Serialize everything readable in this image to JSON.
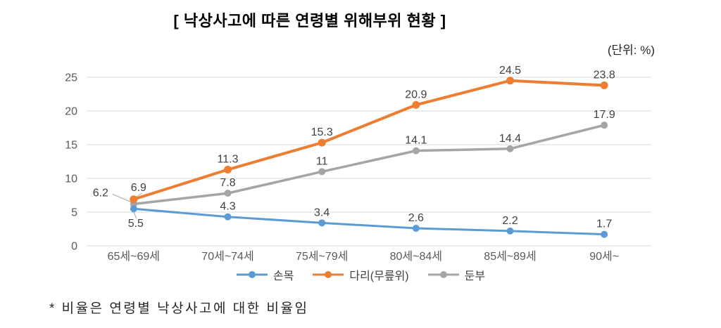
{
  "footnote": "* 비율은 연령별 낙상사고에 대한 비율임",
  "chart_data": {
    "type": "line",
    "title": "[ 낙상사고에 따른 연령별 위해부위 현황 ]",
    "unit_annotation": "(단위: %)",
    "categories": [
      "65세~69세",
      "70세~74세",
      "75세~79세",
      "80세~84세",
      "85세~89세",
      "90세~"
    ],
    "series": [
      {
        "name": "손목",
        "color": "#5B9BD5",
        "values": [
          5.5,
          4.3,
          3.4,
          2.6,
          2.2,
          1.7
        ]
      },
      {
        "name": "다리(무릎위)",
        "color": "#ED7D31",
        "values": [
          6.9,
          11.3,
          15.3,
          20.9,
          24.5,
          23.8
        ]
      },
      {
        "name": "둔부",
        "color": "#A5A5A5",
        "values": [
          6.2,
          7.8,
          11,
          14.1,
          14.4,
          17.9
        ]
      }
    ],
    "ylim": [
      0,
      25
    ],
    "ytick_step": 5,
    "grid": true,
    "grid_color": "#D9D9D9",
    "axis_text_color": "#595959",
    "data_label_color": "#404040",
    "data_labels": true,
    "legend_position": "bottom",
    "xlabel": "",
    "ylabel": ""
  }
}
